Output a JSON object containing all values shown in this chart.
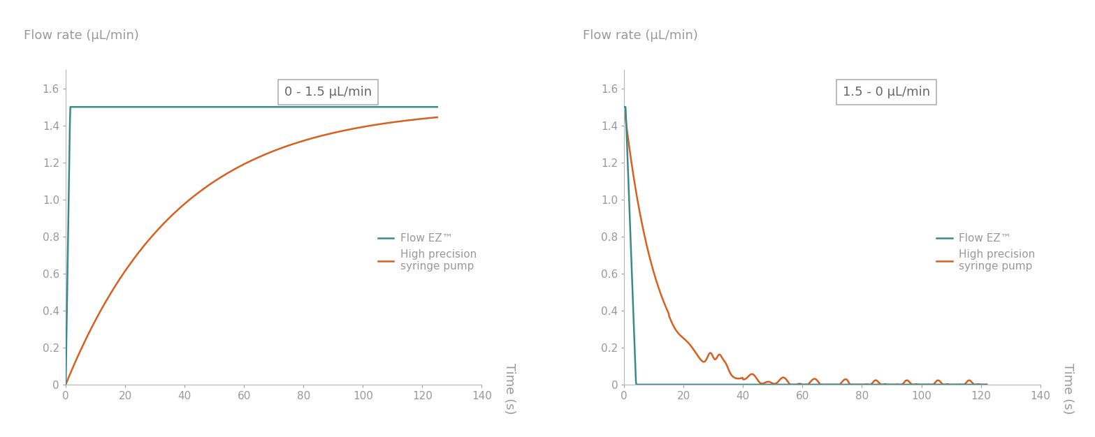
{
  "teal_color": "#3a8a8c",
  "orange_color": "#d95f1e",
  "label_color": "#999999",
  "axis_color": "#bbbbbb",
  "background_color": "#ffffff",
  "ylabel": "Flow rate (μL/min)",
  "xlabel": "Time (s)",
  "ylim": [
    0,
    1.7
  ],
  "xlim": [
    0,
    140
  ],
  "yticks": [
    0,
    0.2,
    0.4,
    0.6,
    0.8,
    1.0,
    1.2,
    1.4,
    1.6
  ],
  "xticks": [
    0,
    20,
    40,
    60,
    80,
    100,
    120,
    140
  ],
  "legend_label1": "Flow EZ™",
  "legend_label2": "High precision\nsyringe pump",
  "box_label1": "0 - 1.5 μL/min",
  "box_label2": "1.5 - 0 μL/min",
  "line_width": 1.8,
  "font_size_label": 13,
  "font_size_tick": 11,
  "font_size_box": 13,
  "font_size_legend": 11,
  "font_size_ylabel": 13
}
